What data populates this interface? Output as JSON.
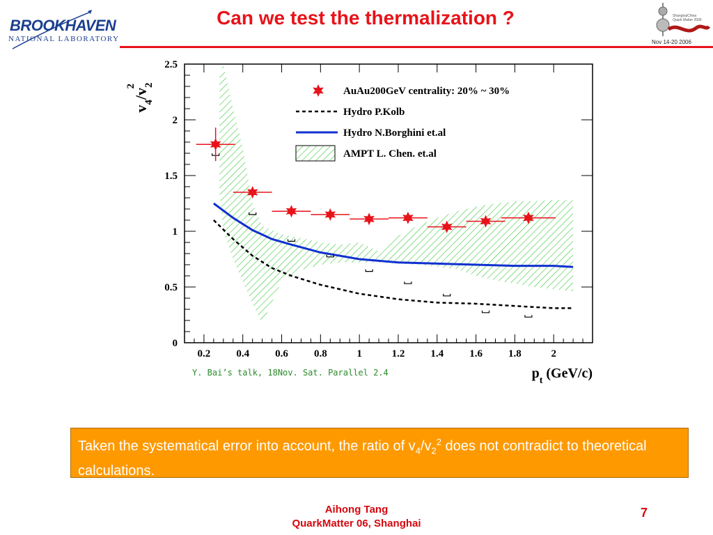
{
  "slide": {
    "title": "Can we test the thermalization ?",
    "credit": "Y. Bai’s talk, 18Nov. Sat. Parallel 2.4",
    "callout": {
      "text_before": "Taken the systematical error into account, the ratio of v",
      "sub1": "4",
      "slash": "/v",
      "sub2": "2",
      "sup": "2",
      "text_after": " does not contradict to theoretical calculations."
    },
    "footer_line1": "Aihong Tang",
    "footer_line2": "QuarkMatter 06, Shanghai",
    "page_number": "7",
    "accent_color": "#e8131a",
    "callout_color": "#ff9900"
  },
  "logos": {
    "bnl_line1": "BROOKHAVEN",
    "bnl_line2": "NATIONAL LABORATORY",
    "qm_date": "Nov 14-20 2006"
  },
  "chart_data": {
    "type": "scatter",
    "xlabel": "p_t (GeV/c)",
    "ylabel": "v4/v2^2",
    "xlim": [
      0.1,
      2.2
    ],
    "ylim": [
      0,
      2.5
    ],
    "x_ticks": [
      "0.2",
      "0.4",
      "0.6",
      "0.8",
      "1",
      "1.2",
      "1.4",
      "1.6",
      "1.8",
      "2"
    ],
    "y_ticks": [
      "0",
      "0.5",
      "1",
      "1.5",
      "2",
      "2.5"
    ],
    "legend_position": "top-right",
    "series": [
      {
        "name": "AuAu200GeV centrality: 20% ~ 30%",
        "style": "star-markers",
        "color": "#e8131a",
        "x": [
          0.26,
          0.45,
          0.65,
          0.85,
          1.05,
          1.25,
          1.45,
          1.65,
          1.87
        ],
        "y": [
          1.78,
          1.35,
          1.18,
          1.15,
          1.11,
          1.12,
          1.04,
          1.09,
          1.12
        ],
        "xerr": [
          0.1,
          0.1,
          0.1,
          0.1,
          0.1,
          0.1,
          0.1,
          0.1,
          0.14
        ],
        "yerr": [
          0.15,
          0.04,
          0.03,
          0.03,
          0.03,
          0.03,
          0.03,
          0.03,
          0.04
        ],
        "sys_low": [
          1.68,
          1.15,
          0.91,
          0.77,
          0.64,
          0.53,
          0.42,
          0.27,
          0.23
        ]
      },
      {
        "name": "Hydro P.Kolb",
        "style": "dashed",
        "color": "#000000",
        "x": [
          0.25,
          0.35,
          0.45,
          0.55,
          0.65,
          0.8,
          1.0,
          1.2,
          1.4,
          1.6,
          1.8,
          2.0,
          2.1
        ],
        "y": [
          1.1,
          0.93,
          0.78,
          0.67,
          0.6,
          0.52,
          0.44,
          0.39,
          0.36,
          0.35,
          0.33,
          0.31,
          0.31
        ]
      },
      {
        "name": "Hydro N.Borghini et.al",
        "style": "solid",
        "color": "#1030d0",
        "x": [
          0.25,
          0.35,
          0.45,
          0.55,
          0.65,
          0.8,
          1.0,
          1.2,
          1.4,
          1.6,
          1.8,
          2.0,
          2.1
        ],
        "y": [
          1.25,
          1.12,
          1.01,
          0.93,
          0.88,
          0.81,
          0.75,
          0.72,
          0.71,
          0.7,
          0.69,
          0.69,
          0.68
        ]
      },
      {
        "name": "AMPT L. Chen. et.al",
        "style": "hatched-band",
        "color": "#36c836",
        "x": [
          0.28,
          0.3,
          0.35,
          0.4,
          0.45,
          0.5,
          0.6,
          0.7,
          0.8,
          0.9,
          1.0,
          1.1,
          1.2,
          1.3,
          1.4,
          1.5,
          1.6,
          1.7,
          1.8,
          1.9,
          2.0,
          2.1
        ],
        "upper": [
          2.4,
          2.5,
          2.1,
          1.75,
          1.25,
          1.05,
          0.97,
          0.94,
          0.9,
          0.88,
          0.9,
          0.82,
          0.96,
          1.05,
          1.12,
          1.18,
          1.22,
          1.25,
          1.27,
          1.27,
          1.28,
          1.28
        ],
        "lower": [
          1.35,
          1.0,
          0.75,
          0.55,
          0.35,
          0.17,
          0.55,
          0.65,
          0.7,
          0.72,
          0.72,
          0.72,
          0.71,
          0.7,
          0.68,
          0.66,
          0.6,
          0.56,
          0.53,
          0.5,
          0.48,
          0.46
        ]
      }
    ]
  }
}
